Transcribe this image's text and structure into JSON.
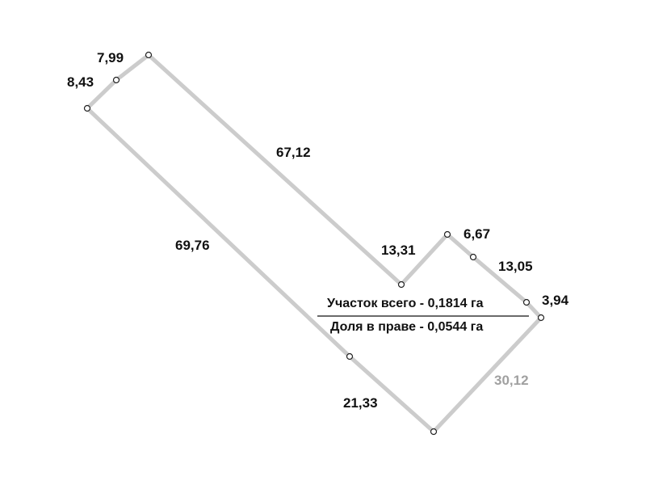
{
  "plot": {
    "boundary_color": "#cccccc",
    "segment_lengths": [
      "7,99",
      "8,43",
      "67,12",
      "69,76",
      "13,31",
      "6,67",
      "13,05",
      "3,94",
      "30,12",
      "21,33"
    ],
    "highlight_color": "#a0a0a0"
  },
  "summary": {
    "total": "Участок всего -  0,1814 га",
    "share": "Доля в праве -  0,0544 га"
  }
}
